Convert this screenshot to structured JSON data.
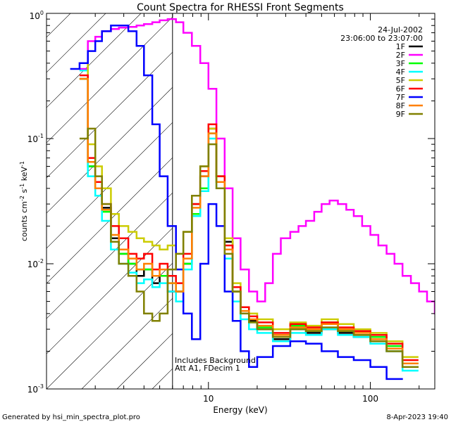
{
  "chart_data": {
    "type": "line",
    "title": "Count Spectra for RHESSI Front Segments",
    "xlabel": "Energy (keV)",
    "ylabel_base": "counts cm",
    "ylabel_exp1": "-2",
    "ylabel_mid": " s",
    "ylabel_exp2": "-1",
    "ylabel_end": " keV",
    "ylabel_exp3": "-1",
    "xscale": "log",
    "yscale": "log",
    "xlim": [
      1,
      250
    ],
    "ylim": [
      0.001,
      1
    ],
    "x_ticks": [
      {
        "value": 10,
        "label": "10"
      },
      {
        "value": 100,
        "label": "100"
      }
    ],
    "y_ticks": [
      {
        "value": 1,
        "base": "10",
        "exp": "0"
      },
      {
        "value": 0.1,
        "base": "10",
        "exp": "-1"
      },
      {
        "value": 0.01,
        "base": "10",
        "exp": "-2"
      },
      {
        "value": 0.001,
        "base": "10",
        "exp": "-3"
      }
    ],
    "date": "24-Jul-2002",
    "time_range": "23:06:00 to 23:07:00",
    "annotation_line1": "Includes Background",
    "annotation_line2": "Att A1, FDecim 1",
    "hatch_upper_energy": 6,
    "footer_left": "Generated by hsi_min_spectra_plot.pro",
    "footer_right": "8-Apr-2023 19:40",
    "series": [
      {
        "name": "1F",
        "color": "#000000",
        "x": [
          1.6,
          1.8,
          2,
          2.2,
          2.5,
          2.8,
          3.2,
          3.6,
          4,
          4.5,
          5,
          5.6,
          6.3,
          7,
          7.9,
          8.9,
          10,
          11.2,
          12.6,
          14.1,
          15.8,
          17.8,
          20,
          25,
          32,
          40,
          50,
          63,
          79,
          100,
          126,
          158
        ],
        "y": [
          0.3,
          0.06,
          0.04,
          0.028,
          0.016,
          0.012,
          0.01,
          0.008,
          0.009,
          0.007,
          0.008,
          0.006,
          0.006,
          0.01,
          0.03,
          0.05,
          0.12,
          0.05,
          0.015,
          0.006,
          0.004,
          0.0035,
          0.003,
          0.0025,
          0.003,
          0.0028,
          0.003,
          0.0028,
          0.0026,
          0.0024,
          0.002,
          0.0015
        ]
      },
      {
        "name": "2F",
        "color": "#ff00ff",
        "x": [
          1.6,
          1.8,
          2,
          2.2,
          2.5,
          2.8,
          3.2,
          3.6,
          4,
          4.5,
          5,
          5.6,
          6.3,
          7,
          7.9,
          8.9,
          10,
          11.2,
          12.6,
          14.1,
          15.8,
          17.8,
          20,
          22.4,
          25,
          28,
          32,
          36,
          40,
          45,
          50,
          56,
          63,
          71,
          79,
          89,
          100,
          112,
          126,
          141,
          158,
          178,
          200,
          224,
          250
        ],
        "y": [
          0.36,
          0.6,
          0.65,
          0.72,
          0.75,
          0.77,
          0.78,
          0.8,
          0.82,
          0.85,
          0.88,
          0.9,
          0.85,
          0.7,
          0.55,
          0.4,
          0.25,
          0.1,
          0.04,
          0.016,
          0.009,
          0.006,
          0.005,
          0.007,
          0.012,
          0.016,
          0.018,
          0.02,
          0.022,
          0.026,
          0.03,
          0.032,
          0.03,
          0.027,
          0.024,
          0.02,
          0.017,
          0.014,
          0.012,
          0.01,
          0.008,
          0.007,
          0.006,
          0.005,
          0.004
        ]
      },
      {
        "name": "3F",
        "color": "#00ff00",
        "x": [
          1.6,
          1.8,
          2,
          2.2,
          2.5,
          2.8,
          3.2,
          3.6,
          4,
          4.5,
          5,
          5.6,
          6.3,
          7,
          7.9,
          8.9,
          10,
          11.2,
          12.6,
          14.1,
          15.8,
          17.8,
          20,
          25,
          32,
          40,
          50,
          63,
          79,
          100,
          126,
          158
        ],
        "y": [
          0.3,
          0.06,
          0.04,
          0.026,
          0.015,
          0.012,
          0.01,
          0.009,
          0.009,
          0.008,
          0.008,
          0.007,
          0.006,
          0.01,
          0.025,
          0.04,
          0.11,
          0.045,
          0.013,
          0.006,
          0.004,
          0.0034,
          0.0031,
          0.0027,
          0.0032,
          0.003,
          0.0034,
          0.003,
          0.0029,
          0.0026,
          0.0022,
          0.0016
        ]
      },
      {
        "name": "4F",
        "color": "#00ffff",
        "x": [
          1.6,
          1.8,
          2,
          2.2,
          2.5,
          2.8,
          3.2,
          3.6,
          4,
          4.5,
          5,
          5.6,
          6.3,
          7,
          7.9,
          8.9,
          10,
          11.2,
          12.6,
          14.1,
          15.8,
          17.8,
          20,
          25,
          32,
          40,
          50,
          63,
          79,
          100,
          126,
          158
        ],
        "y": [
          0.35,
          0.05,
          0.035,
          0.022,
          0.013,
          0.01,
          0.0085,
          0.007,
          0.0075,
          0.0065,
          0.007,
          0.006,
          0.005,
          0.009,
          0.024,
          0.038,
          0.1,
          0.04,
          0.011,
          0.005,
          0.0036,
          0.003,
          0.0028,
          0.0024,
          0.0028,
          0.0027,
          0.003,
          0.0027,
          0.0026,
          0.0023,
          0.002,
          0.0014
        ]
      },
      {
        "name": "5F",
        "color": "#cccc00",
        "x": [
          1.6,
          1.8,
          2,
          2.2,
          2.5,
          2.8,
          3.2,
          3.6,
          4,
          4.5,
          5,
          5.6,
          6.3,
          7,
          7.9,
          8.9,
          10,
          11.2,
          12.6,
          14.1,
          15.8,
          17.8,
          20,
          25,
          32,
          40,
          50,
          63,
          79,
          100,
          126,
          158
        ],
        "y": [
          0.4,
          0.09,
          0.06,
          0.04,
          0.025,
          0.02,
          0.018,
          0.016,
          0.015,
          0.014,
          0.013,
          0.014,
          0.012,
          0.018,
          0.035,
          0.06,
          0.12,
          0.05,
          0.016,
          0.007,
          0.0045,
          0.004,
          0.0036,
          0.003,
          0.0034,
          0.0032,
          0.0036,
          0.0033,
          0.003,
          0.0028,
          0.0024,
          0.0018
        ]
      },
      {
        "name": "6F",
        "color": "#ff0000",
        "x": [
          1.6,
          1.8,
          2,
          2.2,
          2.5,
          2.8,
          3.2,
          3.6,
          4,
          4.5,
          5,
          5.6,
          6.3,
          7,
          7.9,
          8.9,
          10,
          11.2,
          12.6,
          14.1,
          15.8,
          17.8,
          20,
          25,
          32,
          40,
          50,
          63,
          79,
          100,
          126,
          158
        ],
        "y": [
          0.32,
          0.07,
          0.045,
          0.03,
          0.02,
          0.016,
          0.012,
          0.011,
          0.012,
          0.009,
          0.01,
          0.008,
          0.007,
          0.012,
          0.03,
          0.055,
          0.13,
          0.05,
          0.014,
          0.0065,
          0.0045,
          0.0038,
          0.0034,
          0.0028,
          0.0033,
          0.0031,
          0.0034,
          0.0031,
          0.0029,
          0.0027,
          0.0023,
          0.0017
        ]
      },
      {
        "name": "7F",
        "color": "#0000ff",
        "x": [
          1.4,
          1.6,
          1.8,
          2,
          2.2,
          2.5,
          2.8,
          3.2,
          3.6,
          4,
          4.5,
          5,
          5.6,
          6.3,
          7,
          7.9,
          8.9,
          10,
          11.2,
          12.6,
          14.1,
          15.8,
          17.8,
          20,
          25,
          32,
          40,
          50,
          63,
          79,
          100,
          126
        ],
        "y": [
          0.36,
          0.4,
          0.5,
          0.6,
          0.72,
          0.8,
          0.8,
          0.72,
          0.55,
          0.32,
          0.13,
          0.05,
          0.02,
          0.009,
          0.004,
          0.0025,
          0.01,
          0.03,
          0.02,
          0.006,
          0.0035,
          0.002,
          0.0015,
          0.0018,
          0.0022,
          0.0024,
          0.0023,
          0.002,
          0.0018,
          0.0017,
          0.0015,
          0.0012
        ]
      },
      {
        "name": "8F",
        "color": "#ff8000",
        "x": [
          1.6,
          1.8,
          2,
          2.2,
          2.5,
          2.8,
          3.2,
          3.6,
          4,
          4.5,
          5,
          5.6,
          6.3,
          7,
          7.9,
          8.9,
          10,
          11.2,
          12.6,
          14.1,
          15.8,
          17.8,
          20,
          25,
          32,
          40,
          50,
          63,
          79,
          100,
          126,
          158
        ],
        "y": [
          0.3,
          0.065,
          0.04,
          0.027,
          0.017,
          0.013,
          0.011,
          0.009,
          0.01,
          0.008,
          0.009,
          0.007,
          0.006,
          0.011,
          0.028,
          0.05,
          0.11,
          0.045,
          0.013,
          0.006,
          0.0042,
          0.0036,
          0.0032,
          0.0027,
          0.0031,
          0.003,
          0.0033,
          0.003,
          0.0028,
          0.0025,
          0.0021,
          0.0016
        ]
      },
      {
        "name": "9F",
        "color": "#808000",
        "x": [
          1.6,
          1.8,
          2,
          2.2,
          2.5,
          2.8,
          3.2,
          3.6,
          4,
          4.5,
          5,
          5.6,
          6.3,
          7,
          7.9,
          8.9,
          10,
          11.2,
          12.6,
          14.1,
          15.8,
          17.8,
          20,
          25,
          32,
          40,
          50,
          63,
          79,
          100,
          126,
          158
        ],
        "y": [
          0.1,
          0.12,
          0.05,
          0.03,
          0.015,
          0.01,
          0.008,
          0.006,
          0.004,
          0.0035,
          0.004,
          0.009,
          0.012,
          0.018,
          0.035,
          0.06,
          0.09,
          0.04,
          0.012,
          0.006,
          0.004,
          0.0034,
          0.003,
          0.0026,
          0.003,
          0.0029,
          0.0031,
          0.0029,
          0.0027,
          0.0024,
          0.002,
          0.0015
        ]
      }
    ]
  }
}
